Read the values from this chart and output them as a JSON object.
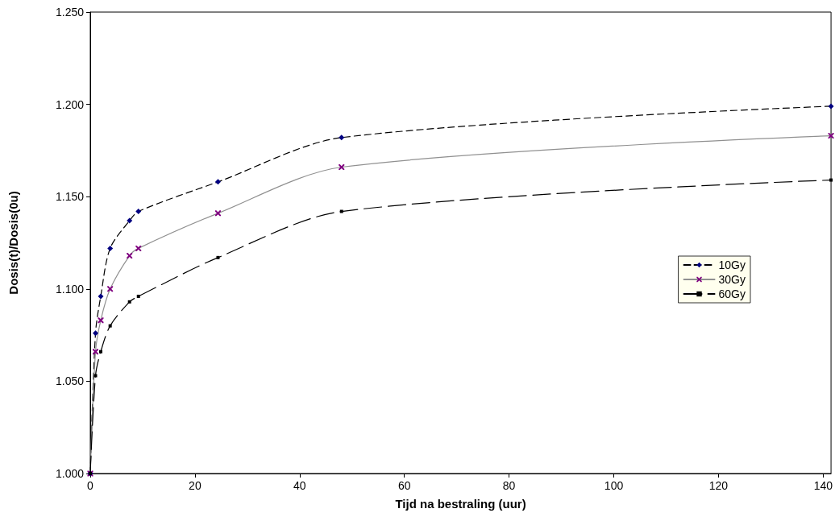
{
  "chart_data": {
    "type": "line",
    "xlabel": "Tijd na bestraling (uur)",
    "ylabel": "Dosis(t)/Dosis(0u)",
    "xlim": [
      0,
      141.5
    ],
    "xticks": [
      0,
      20,
      40,
      60,
      80,
      100,
      120,
      140
    ],
    "ylim": [
      1,
      1.25
    ],
    "yticks": [
      {
        "value": 1,
        "label": "1.000"
      },
      {
        "value": 1.05,
        "label": "1.050"
      },
      {
        "value": 1.1,
        "label": "1.100"
      },
      {
        "value": 1.15,
        "label": "1.150"
      },
      {
        "value": 1.2,
        "label": "1.200"
      },
      {
        "value": 1.25,
        "label": "1.250"
      }
    ],
    "grid": false,
    "legend": "right",
    "series": [
      {
        "name": "10Gy",
        "color": "#000080",
        "marker": "diamond",
        "line_style": "dashed",
        "x": [
          0,
          1,
          2,
          3.8,
          7.5,
          9.2,
          24.4,
          48,
          141.5
        ],
        "values": [
          1.0,
          1.076,
          1.096,
          1.122,
          1.137,
          1.142,
          1.158,
          1.182,
          1.199
        ]
      },
      {
        "name": "30Gy",
        "color": "#800080",
        "marker": "cross",
        "line_style": "solid",
        "x": [
          0,
          1,
          2,
          3.8,
          7.5,
          9.2,
          24.4,
          48,
          141.5
        ],
        "values": [
          1.0,
          1.066,
          1.083,
          1.1,
          1.118,
          1.122,
          1.141,
          1.166,
          1.183
        ]
      },
      {
        "name": "60Gy",
        "color": "#000000",
        "marker": "square",
        "line_style": "dashed",
        "x": [
          0,
          1,
          2,
          3.8,
          7.5,
          9.2,
          24.4,
          48,
          141.5
        ],
        "values": [
          1.0,
          1.053,
          1.066,
          1.08,
          1.093,
          1.096,
          1.117,
          1.142,
          1.159
        ]
      }
    ]
  }
}
